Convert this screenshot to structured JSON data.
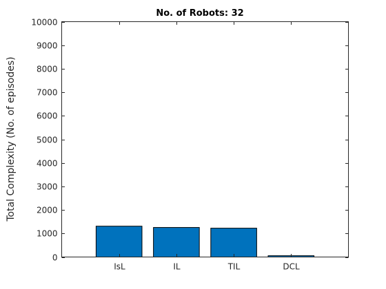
{
  "chart_data": {
    "type": "bar",
    "title": "No. of Robots:  32",
    "xlabel": "",
    "ylabel": "Total Complexity (No. of episodes)",
    "categories": [
      "IsL",
      "IL",
      "TIL",
      "DCL"
    ],
    "values": [
      1310,
      1255,
      1225,
      55
    ],
    "ylim": [
      0,
      10000
    ],
    "yticks": [
      0,
      1000,
      2000,
      3000,
      4000,
      5000,
      6000,
      7000,
      8000,
      9000,
      10000
    ],
    "grid": false,
    "colors": {
      "bar": "#0072BD",
      "bar_edge": "#000000",
      "axis": "#262626"
    }
  }
}
